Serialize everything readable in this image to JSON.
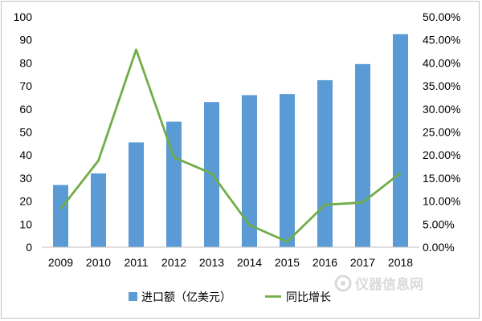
{
  "chart_data": {
    "type": "bar+line",
    "categories": [
      "2009",
      "2010",
      "2011",
      "2012",
      "2013",
      "2014",
      "2015",
      "2016",
      "2017",
      "2018"
    ],
    "series": [
      {
        "name": "进口额（亿美元）",
        "type": "bar",
        "axis": "left",
        "color": "#5b9bd5",
        "values": [
          27,
          32,
          45.5,
          54.5,
          63,
          66,
          66.5,
          72.5,
          79.5,
          92.5
        ]
      },
      {
        "name": "同比增长",
        "type": "line",
        "axis": "right",
        "color": "#70ad47",
        "values": [
          8.3,
          18.8,
          42.9,
          19.5,
          16.0,
          4.8,
          1.2,
          9.2,
          9.7,
          16.1
        ]
      }
    ],
    "y_left": {
      "ylim": [
        0,
        100
      ],
      "ticks": [
        "0",
        "10",
        "20",
        "30",
        "40",
        "50",
        "60",
        "70",
        "80",
        "90",
        "100"
      ]
    },
    "y_right": {
      "ylim": [
        0,
        50
      ],
      "ticks": [
        "0.00%",
        "5.00%",
        "10.00%",
        "15.00%",
        "20.00%",
        "25.00%",
        "30.00%",
        "35.00%",
        "40.00%",
        "45.00%",
        "50.00%"
      ]
    },
    "grid": false,
    "legend_position": "bottom"
  },
  "watermark": {
    "text": "仪器信息网"
  }
}
